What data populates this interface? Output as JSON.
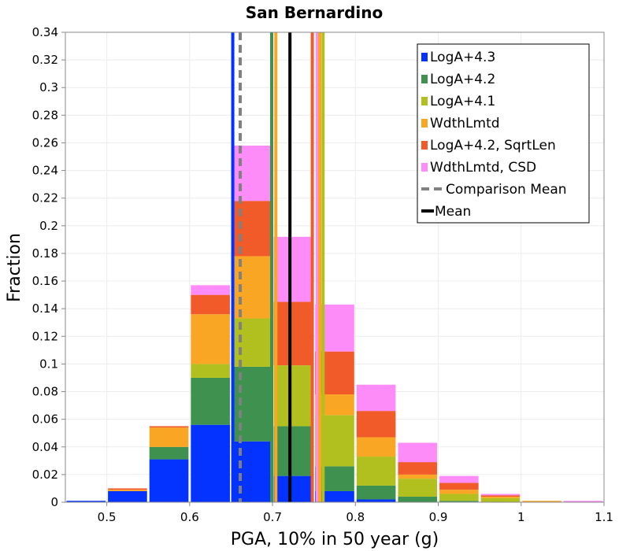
{
  "chart_data": {
    "type": "bar",
    "stacked": true,
    "title": "San Bernardino",
    "xlabel": "PGA, 10% in 50 year (g)",
    "ylabel": "Fraction",
    "xlim": [
      0.45,
      1.1
    ],
    "ylim": [
      0,
      0.34
    ],
    "xticks": [
      "0.5",
      "0.6",
      "0.7",
      "0.8",
      "0.9",
      "1",
      "1.1"
    ],
    "yticks": [
      "0",
      "0.02",
      "0.04",
      "0.06",
      "0.08",
      "0.1",
      "0.12",
      "0.14",
      "0.16",
      "0.18",
      "0.2",
      "0.22",
      "0.24",
      "0.26",
      "0.28",
      "0.3",
      "0.32",
      "0.34"
    ],
    "bin_width": 0.05,
    "bins": [
      0.475,
      0.525,
      0.575,
      0.625,
      0.675,
      0.725,
      0.775,
      0.825,
      0.875,
      0.925,
      0.975,
      1.025,
      1.075
    ],
    "series": [
      {
        "name": "LogA+4.3",
        "color": "#0432ff",
        "values": [
          0.001,
          0.008,
          0.031,
          0.056,
          0.044,
          0.019,
          0.008,
          0.002,
          0.0,
          0.0,
          0.0,
          0.0,
          0.0
        ]
      },
      {
        "name": "LogA+4.2",
        "color": "#3f9150",
        "values": [
          0.0,
          0.0,
          0.009,
          0.034,
          0.054,
          0.036,
          0.018,
          0.01,
          0.004,
          0.001,
          0.0,
          0.0,
          0.0
        ]
      },
      {
        "name": "LogA+4.1",
        "color": "#b2c01f",
        "values": [
          0.0,
          0.0,
          0.0,
          0.01,
          0.035,
          0.044,
          0.037,
          0.021,
          0.013,
          0.005,
          0.003,
          0.0,
          0.0
        ]
      },
      {
        "name": "WdthLmtd",
        "color": "#f9a625",
        "values": [
          0.0,
          0.001,
          0.014,
          0.036,
          0.045,
          0.0,
          0.015,
          0.014,
          0.003,
          0.003,
          0.001,
          0.001,
          0.0
        ]
      },
      {
        "name": "LogA+4.2, SqrtLen",
        "color": "#f15a29",
        "values": [
          0.0,
          0.001,
          0.001,
          0.014,
          0.04,
          0.046,
          0.031,
          0.019,
          0.009,
          0.005,
          0.001,
          0.0,
          0.0
        ]
      },
      {
        "name": "WdthLmtd, CSD",
        "color": "#fd8cf8",
        "values": [
          0.0,
          0.0,
          0.0,
          0.007,
          0.04,
          0.047,
          0.034,
          0.019,
          0.014,
          0.005,
          0.001,
          0.0,
          0.001
        ]
      }
    ],
    "vertical_lines": [
      {
        "series": "LogA+4.3",
        "x": 0.652,
        "color": "#0432ff",
        "style": "solid"
      },
      {
        "series": "LogA+4.2",
        "x": 0.699,
        "color": "#3f9150",
        "style": "solid"
      },
      {
        "series": "WdthLmtd",
        "x": 0.704,
        "color": "#f9a625",
        "style": "solid"
      },
      {
        "series": "LogA+4.2, SqrtLen",
        "x": 0.748,
        "color": "#f15a29",
        "style": "solid"
      },
      {
        "series": "WdthLmtd, CSD",
        "x": 0.754,
        "color": "#fd8cf8",
        "style": "solid"
      },
      {
        "series": "WdthLmtd",
        "x": 0.757,
        "color": "#f9a625",
        "style": "solid"
      },
      {
        "series": "LogA+4.1",
        "x": 0.761,
        "color": "#b2c01f",
        "style": "solid"
      },
      {
        "series": "Comparison Mean",
        "x": 0.661,
        "color": "#808080",
        "style": "dashed"
      },
      {
        "series": "Mean",
        "x": 0.721,
        "color": "#000000",
        "style": "solid"
      }
    ],
    "legend": {
      "position": "top-right",
      "entries": [
        {
          "label": "LogA+4.3",
          "color": "#0432ff",
          "kind": "box"
        },
        {
          "label": "LogA+4.2",
          "color": "#3f9150",
          "kind": "box"
        },
        {
          "label": "LogA+4.1",
          "color": "#b2c01f",
          "kind": "box"
        },
        {
          "label": "WdthLmtd",
          "color": "#f9a625",
          "kind": "box"
        },
        {
          "label": "LogA+4.2, SqrtLen",
          "color": "#f15a29",
          "kind": "box"
        },
        {
          "label": "WdthLmtd, CSD",
          "color": "#fd8cf8",
          "kind": "box"
        },
        {
          "label": "Comparison Mean",
          "color": "#808080",
          "kind": "dashed"
        },
        {
          "label": "Mean",
          "color": "#000000",
          "kind": "line"
        }
      ]
    },
    "grid": true
  }
}
